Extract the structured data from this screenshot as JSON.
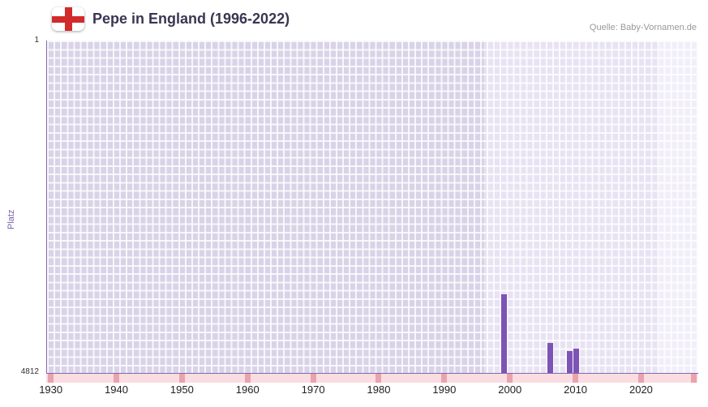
{
  "header": {
    "title": "Pepe in England (1996-2022)",
    "source": "Quelle: Baby-Vornamen.de"
  },
  "chart_data": {
    "type": "bar",
    "title": "Pepe in England (1996-2022)",
    "xlabel": "",
    "ylabel": "Platz",
    "y_axis": {
      "min": 1,
      "max": 4812,
      "top_label": "1",
      "bottom_label": "4812",
      "inverted": true
    },
    "x_range": [
      1929.3,
      2028.6
    ],
    "x_ticks": [
      1930,
      1940,
      1950,
      1960,
      1970,
      1980,
      1990,
      2000,
      2010,
      2020
    ],
    "highlight_band": {
      "start": 1996,
      "end": 2028.6
    },
    "secondary_band": {
      "start": 2022.5,
      "end": 2028.6
    },
    "points": [
      {
        "year": 1999,
        "rank": 3670
      },
      {
        "year": 2006,
        "rank": 4380
      },
      {
        "year": 2009,
        "rank": 4490
      },
      {
        "year": 2010,
        "rank": 4460
      }
    ],
    "no_data_strip": {
      "marks": [
        1930,
        1940,
        1950,
        1960,
        1970,
        1980,
        1990,
        2000,
        2010,
        2020,
        2028
      ]
    },
    "grid": true,
    "legend": false,
    "colors": {
      "bar": "#7d54b6",
      "plot_bg": "#d9d3e8",
      "highlight_band": "#e8e3f3",
      "secondary_band": "#f1eef9",
      "grid_line": "#ffffff",
      "strip_bg": "#fadde1",
      "strip_mark": "#eaa3ac",
      "axis": "#8568b0",
      "title_text": "#3b3552",
      "source_text": "#999999",
      "flag_red": "#d22b2b"
    }
  }
}
